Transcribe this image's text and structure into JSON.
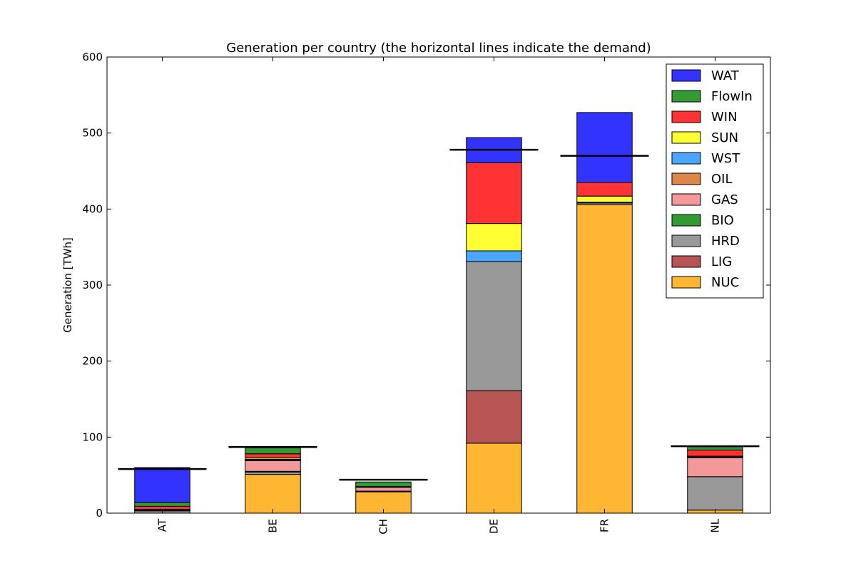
{
  "chart_data": {
    "type": "bar",
    "stacked": true,
    "title": "Generation per country (the horizontal lines indicate the demand)",
    "xlabel": "",
    "ylabel": "Generation [TWh]",
    "ylim": [
      0,
      600
    ],
    "yticks": [
      0,
      100,
      200,
      300,
      400,
      500,
      600
    ],
    "categories": [
      "AT",
      "BE",
      "CH",
      "DE",
      "FR",
      "NL"
    ],
    "series": [
      {
        "name": "NUC",
        "color": "#ffa500",
        "values": [
          0,
          51,
          28,
          92,
          406,
          4
        ]
      },
      {
        "name": "LIG",
        "color": "#a52a2a",
        "values": [
          0,
          0,
          0,
          69,
          0,
          0
        ]
      },
      {
        "name": "HRD",
        "color": "#808080",
        "values": [
          3,
          3,
          0,
          170,
          2,
          44
        ]
      },
      {
        "name": "BIO",
        "color": "#008000",
        "values": [
          1,
          1,
          1,
          0,
          1,
          0
        ]
      },
      {
        "name": "GAS",
        "color": "#f08080",
        "values": [
          1,
          14,
          5,
          0,
          0,
          25
        ]
      },
      {
        "name": "OIL",
        "color": "#d2691e",
        "values": [
          0,
          1,
          1,
          0,
          0,
          1
        ]
      },
      {
        "name": "WST",
        "color": "#1e90ff",
        "values": [
          0,
          1,
          0,
          14,
          0,
          0
        ]
      },
      {
        "name": "SUN",
        "color": "#ffff00",
        "values": [
          0,
          2,
          0,
          36,
          8,
          1
        ]
      },
      {
        "name": "WIN",
        "color": "#ff0000",
        "values": [
          4,
          5,
          0,
          80,
          18,
          8
        ]
      },
      {
        "name": "FlowIn",
        "color": "#008000",
        "values": [
          5,
          8,
          6,
          0,
          0,
          5
        ]
      },
      {
        "name": "WAT",
        "color": "#0000ff",
        "values": [
          46,
          0,
          0,
          33,
          92,
          0
        ]
      }
    ],
    "demand": [
      58,
      87,
      44,
      478,
      470,
      88
    ],
    "legend_position": "upper-right",
    "grid": false
  }
}
